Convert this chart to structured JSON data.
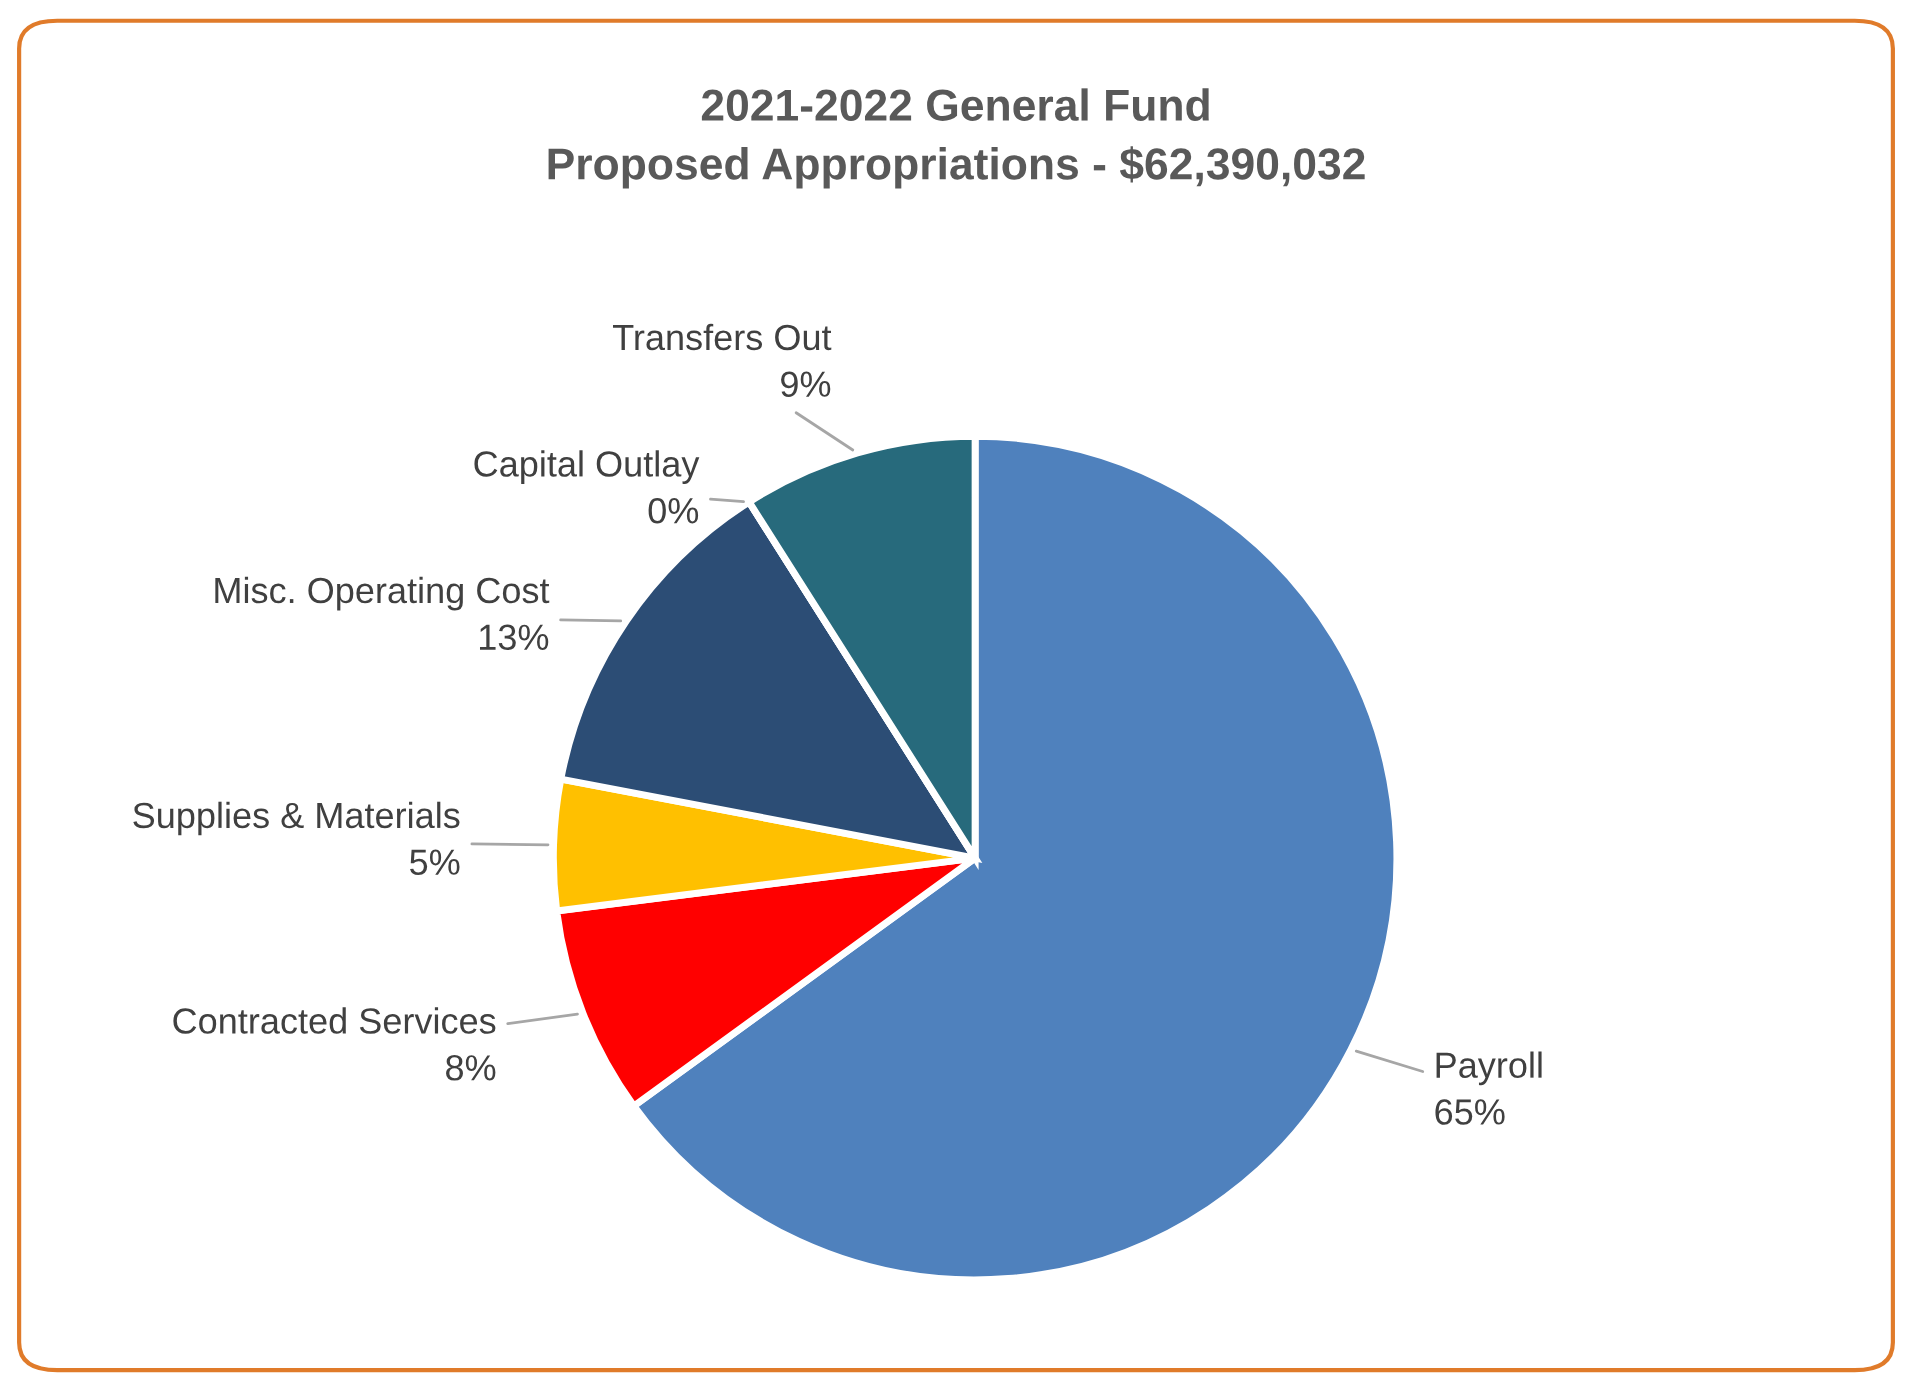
{
  "chart_data": {
    "type": "pie",
    "title": "2021-2022 General Fund\nProposed Appropriations - $62,390,032",
    "categories": [
      "Payroll",
      "Contracted Services",
      "Supplies & Materials",
      "Misc. Operating Cost",
      "Capital Outlay",
      "Transfers Out"
    ],
    "values": [
      65,
      8,
      5,
      13,
      0,
      9
    ],
    "colors": [
      "#4f81bd",
      "#ff0000",
      "#ffc000",
      "#2c4d75",
      "#7f7f7f",
      "#276a7c"
    ],
    "value_labels": [
      "65%",
      "8%",
      "5%",
      "13%",
      "0%",
      "9%"
    ],
    "legend": false
  }
}
